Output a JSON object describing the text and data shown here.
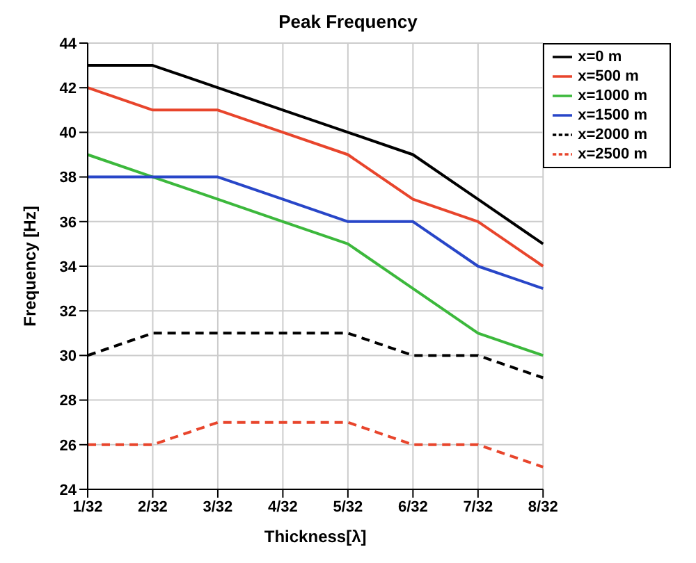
{
  "chart_data": {
    "type": "line",
    "title": "Peak Frequency",
    "xlabel": "Thickness[λ]",
    "ylabel": "Frequency [Hz]",
    "categories": [
      "1/32",
      "2/32",
      "3/32",
      "4/32",
      "5/32",
      "6/32",
      "7/32",
      "8/32"
    ],
    "series": [
      {
        "name": "x=0 m",
        "color": "#000000",
        "line_style": "solid",
        "values": [
          43,
          43,
          42,
          41,
          40,
          39,
          37,
          35
        ]
      },
      {
        "name": "x=500 m",
        "color": "#e8452c",
        "line_style": "solid",
        "values": [
          42,
          41,
          41,
          40,
          39,
          37,
          36,
          34
        ]
      },
      {
        "name": "x=1000 m",
        "color": "#3cb83c",
        "line_style": "solid",
        "values": [
          39,
          38,
          37,
          36,
          35,
          33,
          31,
          30
        ]
      },
      {
        "name": "x=1500 m",
        "color": "#2846c8",
        "line_style": "solid",
        "values": [
          38,
          38,
          38,
          37,
          36,
          36,
          34,
          33
        ]
      },
      {
        "name": "x=2000 m",
        "color": "#000000",
        "line_style": "dashed",
        "values": [
          30,
          31,
          31,
          31,
          31,
          30,
          30,
          29
        ]
      },
      {
        "name": "x=2500 m",
        "color": "#e8452c",
        "line_style": "dashed",
        "values": [
          26,
          26,
          27,
          27,
          27,
          26,
          26,
          25
        ]
      }
    ],
    "ylim": [
      24,
      44
    ],
    "yticks": [
      24,
      26,
      28,
      30,
      32,
      34,
      36,
      38,
      40,
      42,
      44
    ],
    "grid": true,
    "legend": "top right",
    "marker": "none"
  }
}
